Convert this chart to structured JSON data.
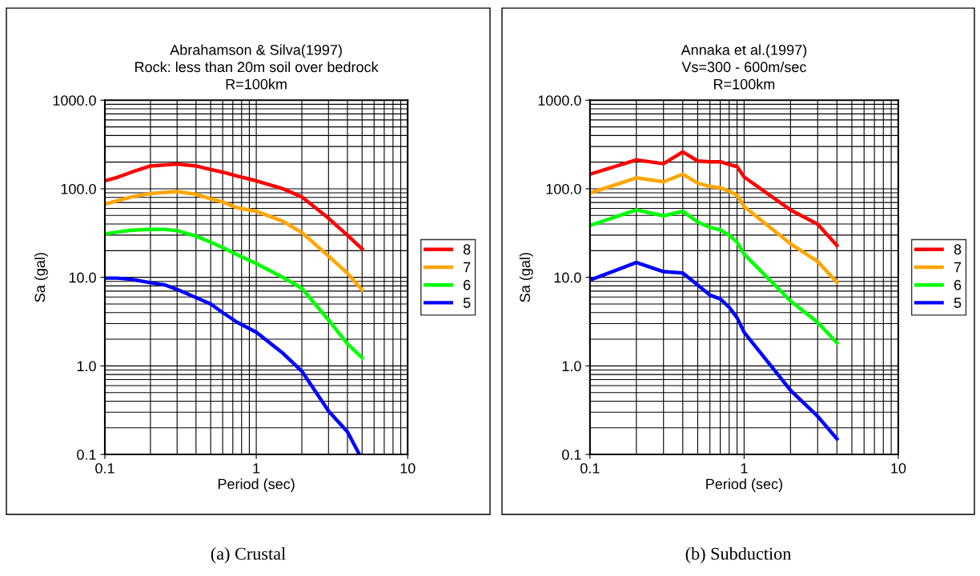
{
  "chart_data": [
    {
      "type": "line",
      "title": "Abrahamson & Silva(1997)\nRock: less than 20m soil over bedrock\nR=100km",
      "xlabel": "Period (sec)",
      "ylabel": "Sa (gal)",
      "log": "xy",
      "grid": true,
      "legend": "right",
      "line_style": "solid",
      "xlim": [
        0.1,
        10
      ],
      "xticks": [
        0.1,
        1,
        10
      ],
      "ylim": [
        0.1,
        1000
      ],
      "yticks": [
        {
          "value": 0.1,
          "label": "0.1"
        },
        {
          "value": 1,
          "label": "1.0"
        },
        {
          "value": 10,
          "label": "10.0"
        },
        {
          "value": 100,
          "label": "100.0"
        },
        {
          "value": 1000,
          "label": "1000.0"
        }
      ],
      "annotations": [
        "(a) Crustal"
      ],
      "series": [
        {
          "name": "8",
          "color": "#ff0000",
          "x": [
            0.1,
            0.12,
            0.15,
            0.2,
            0.3,
            0.4,
            0.5,
            0.6,
            0.75,
            1,
            1.5,
            2,
            3,
            4,
            5
          ],
          "values": [
            123,
            134,
            154,
            181,
            190,
            181,
            165,
            154,
            139,
            123,
            100,
            81,
            46.5,
            29.8,
            21
          ]
        },
        {
          "name": "7",
          "color": "#ffa500",
          "x": [
            0.1,
            0.12,
            0.15,
            0.2,
            0.3,
            0.4,
            0.5,
            0.6,
            0.75,
            1,
            1.5,
            2,
            3,
            4,
            5
          ],
          "values": [
            67,
            73,
            81,
            88.5,
            93,
            86.7,
            77,
            71,
            61,
            55.7,
            42.9,
            32,
            17.4,
            11.1,
            7.2
          ]
        },
        {
          "name": "6",
          "color": "#00ff00",
          "x": [
            0.1,
            0.12,
            0.15,
            0.2,
            0.25,
            0.3,
            0.4,
            0.5,
            0.6,
            0.75,
            1,
            1.5,
            2,
            3,
            4,
            5
          ],
          "values": [
            30.9,
            32.4,
            34.1,
            34.8,
            34.8,
            33.6,
            29.2,
            24.9,
            21.7,
            18,
            14.3,
            10,
            7.5,
            3.3,
            1.77,
            1.24
          ]
        },
        {
          "name": "5",
          "color": "#0000ff",
          "x": [
            0.1,
            0.12,
            0.15,
            0.2,
            0.25,
            0.3,
            0.4,
            0.5,
            0.6,
            0.75,
            1,
            1.5,
            2,
            3,
            4,
            4.8
          ],
          "values": [
            9.8,
            9.8,
            9.5,
            8.7,
            8.2,
            7.3,
            5.9,
            5.0,
            4.0,
            3.1,
            2.4,
            1.39,
            0.87,
            0.31,
            0.18,
            0.1
          ]
        }
      ]
    },
    {
      "type": "line",
      "title": "Annaka et al.(1997)\nVs=300 - 600m/sec\nR=100km",
      "xlabel": "Period (sec)",
      "ylabel": "Sa (gal)",
      "log": "xy",
      "grid": true,
      "legend": "right",
      "line_style": "solid",
      "xlim": [
        0.1,
        10
      ],
      "xticks": [
        0.1,
        1,
        10
      ],
      "ylim": [
        0.1,
        1000
      ],
      "yticks": [
        {
          "value": 0.1,
          "label": "0.1"
        },
        {
          "value": 1,
          "label": "1.0"
        },
        {
          "value": 10,
          "label": "10.0"
        },
        {
          "value": 100,
          "label": "100.0"
        },
        {
          "value": 1000,
          "label": "1000.0"
        }
      ],
      "annotations": [
        "(b) Subduction"
      ],
      "x": [
        0.1,
        0.2,
        0.3,
        0.4,
        0.5,
        0.6,
        0.7,
        0.8,
        0.9,
        1,
        2,
        3,
        4
      ],
      "series": [
        {
          "name": "8",
          "color": "#ff0000",
          "values": [
            146,
            212,
            192,
            261,
            206,
            202,
            202,
            188,
            178,
            136,
            57.7,
            39.9,
            22.9
          ]
        },
        {
          "name": "7",
          "color": "#ffa500",
          "values": [
            89.5,
            133,
            120,
            146,
            116,
            106,
            103,
            94,
            84.6,
            63,
            23.9,
            15.1,
            8.8
          ]
        },
        {
          "name": "6",
          "color": "#00ff00",
          "values": [
            38.5,
            57.7,
            49.5,
            55.7,
            42.2,
            36.7,
            34.3,
            29.8,
            25,
            18.3,
            5.4,
            3.1,
            1.82
          ]
        },
        {
          "name": "5",
          "color": "#0000ff",
          "values": [
            9.3,
            14.7,
            11.6,
            11.2,
            8.2,
            6.3,
            5.7,
            4.6,
            3.5,
            2.4,
            0.53,
            0.27,
            0.15
          ]
        }
      ]
    }
  ]
}
